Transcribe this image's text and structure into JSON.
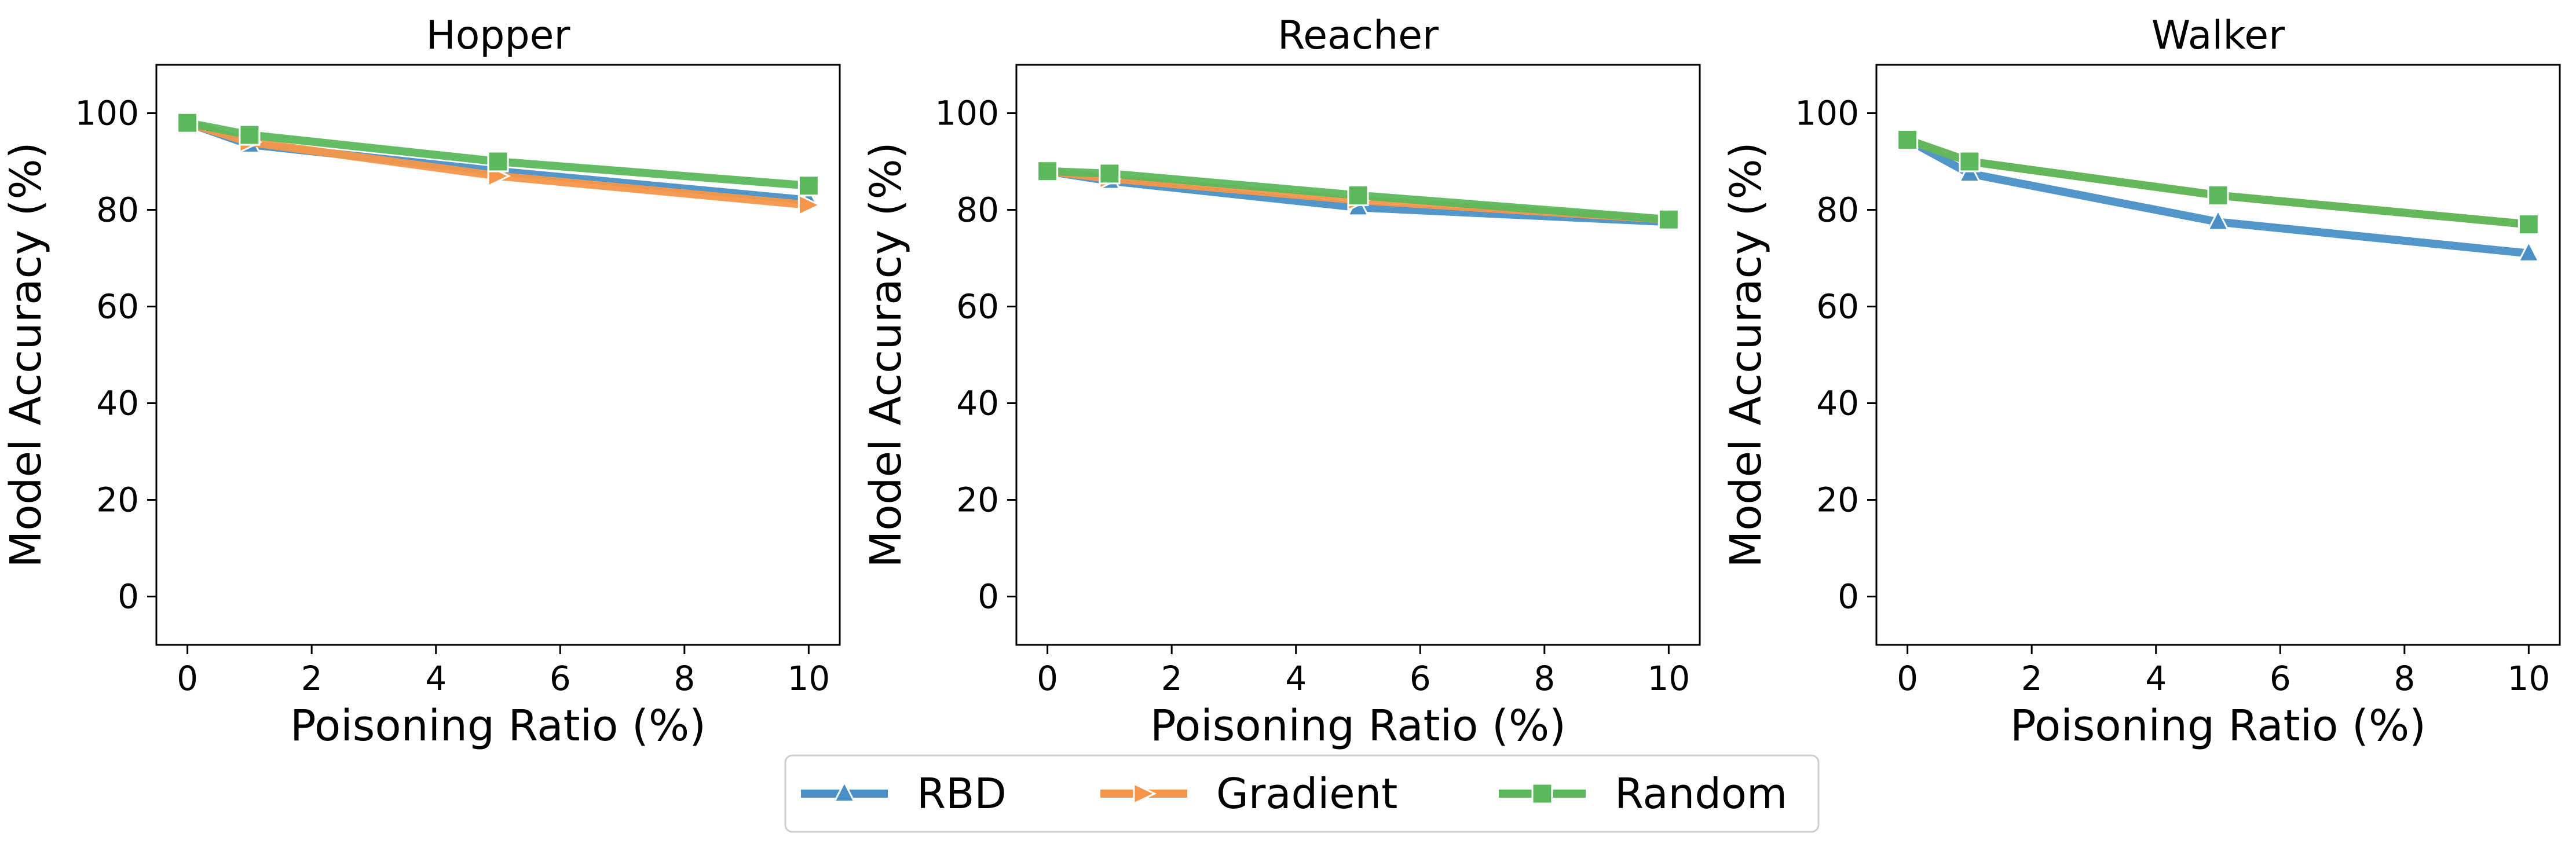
{
  "colors": {
    "RBD": "#4a90c6",
    "Gradient": "#f5964a",
    "Random": "#5cb85c"
  },
  "legend": {
    "placement": "bottom-center",
    "entries": [
      {
        "name": "RBD",
        "marker": "triangle-up"
      },
      {
        "name": "Gradient",
        "marker": "triangle-right"
      },
      {
        "name": "Random",
        "marker": "square"
      }
    ]
  },
  "chart_data": [
    {
      "type": "line",
      "title": "Hopper",
      "xlabel": "Poisoning Ratio (%)",
      "ylabel": "Model Accuracy (%)",
      "xlim": [
        -0.5,
        10.5
      ],
      "ylim": [
        -10,
        110
      ],
      "xticks": [
        0,
        2,
        4,
        6,
        8,
        10
      ],
      "yticks": [
        0,
        20,
        40,
        60,
        80,
        100
      ],
      "grid": false,
      "x": [
        0,
        1,
        5,
        10
      ],
      "series": [
        {
          "name": "RBD",
          "values": [
            98,
            93.5,
            88,
            82
          ]
        },
        {
          "name": "Gradient",
          "values": [
            98,
            94,
            87,
            81
          ]
        },
        {
          "name": "Random",
          "values": [
            98,
            95.5,
            90,
            85
          ]
        }
      ]
    },
    {
      "type": "line",
      "title": "Reacher",
      "xlabel": "Poisoning Ratio (%)",
      "ylabel": "Model Accuracy (%)",
      "xlim": [
        -0.5,
        10.5
      ],
      "ylim": [
        -10,
        110
      ],
      "xticks": [
        0,
        2,
        4,
        6,
        8,
        10
      ],
      "yticks": [
        0,
        20,
        40,
        60,
        80,
        100
      ],
      "grid": false,
      "x": [
        0,
        1,
        5,
        10
      ],
      "series": [
        {
          "name": "RBD",
          "values": [
            88,
            86,
            80.5,
            77.5
          ]
        },
        {
          "name": "Gradient",
          "values": [
            88,
            86.5,
            82,
            78
          ]
        },
        {
          "name": "Random",
          "values": [
            88,
            87.5,
            83,
            78
          ]
        }
      ]
    },
    {
      "type": "line",
      "title": "Walker",
      "xlabel": "Poisoning Ratio (%)",
      "ylabel": "Model Accuracy (%)",
      "xlim": [
        -0.5,
        10.5
      ],
      "ylim": [
        -10,
        110
      ],
      "xticks": [
        0,
        2,
        4,
        6,
        8,
        10
      ],
      "yticks": [
        0,
        20,
        40,
        60,
        80,
        100
      ],
      "grid": false,
      "x": [
        0,
        1,
        5,
        10
      ],
      "series": [
        {
          "name": "RBD",
          "values": [
            94.5,
            87.5,
            77.5,
            71
          ]
        },
        {
          "name": "Gradient",
          "values": [
            94.5,
            90,
            83,
            77
          ]
        },
        {
          "name": "Random",
          "values": [
            94.5,
            90,
            83,
            77
          ]
        }
      ]
    }
  ]
}
